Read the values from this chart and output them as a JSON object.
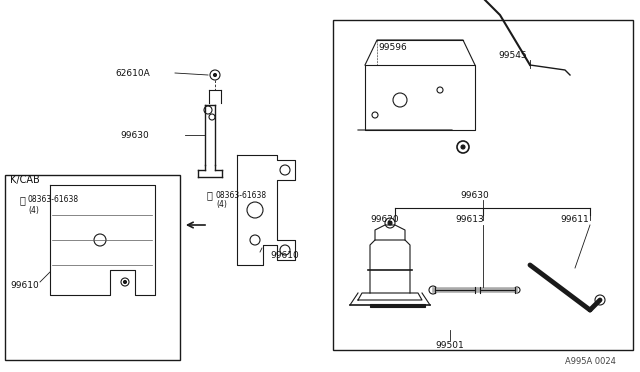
{
  "bg_color": "#ffffff",
  "line_color": "#1a1a1a",
  "title": "A995A 0024",
  "figsize": [
    6.4,
    3.72
  ],
  "dpi": 100
}
